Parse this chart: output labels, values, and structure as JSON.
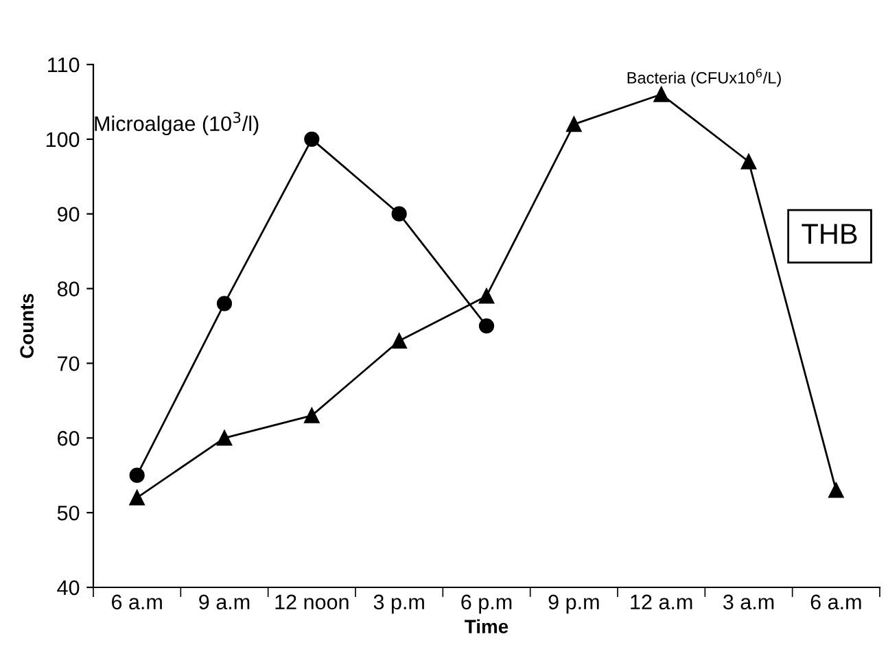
{
  "chart_data": {
    "type": "line",
    "xlabel": "Time",
    "ylabel": "Counts",
    "categories": [
      "6 a.m",
      "9 a.m",
      "12 noon",
      "3 p.m",
      "6 p.m",
      "9 p.m",
      "12 a.m",
      "3 a.m",
      "6 a.m"
    ],
    "series": [
      {
        "name": "Microalgae (10$^{3}$/l)",
        "color": "#000000",
        "marker": "circle",
        "values": [
          55,
          78,
          100,
          90,
          75,
          null,
          null,
          null,
          null
        ]
      },
      {
        "name": "Bacteria (CFUx10$^{6}$/L)",
        "color": "#000000",
        "marker": "triangle",
        "values": [
          52,
          60,
          63,
          73,
          79,
          102,
          106,
          97,
          53
        ]
      }
    ],
    "ylim": [
      40,
      110
    ],
    "yticks": [
      40,
      50,
      60,
      70,
      80,
      90,
      100,
      110
    ],
    "annotations": [
      "THB"
    ],
    "grid": false,
    "legend": false,
    "line_style": "solid"
  }
}
